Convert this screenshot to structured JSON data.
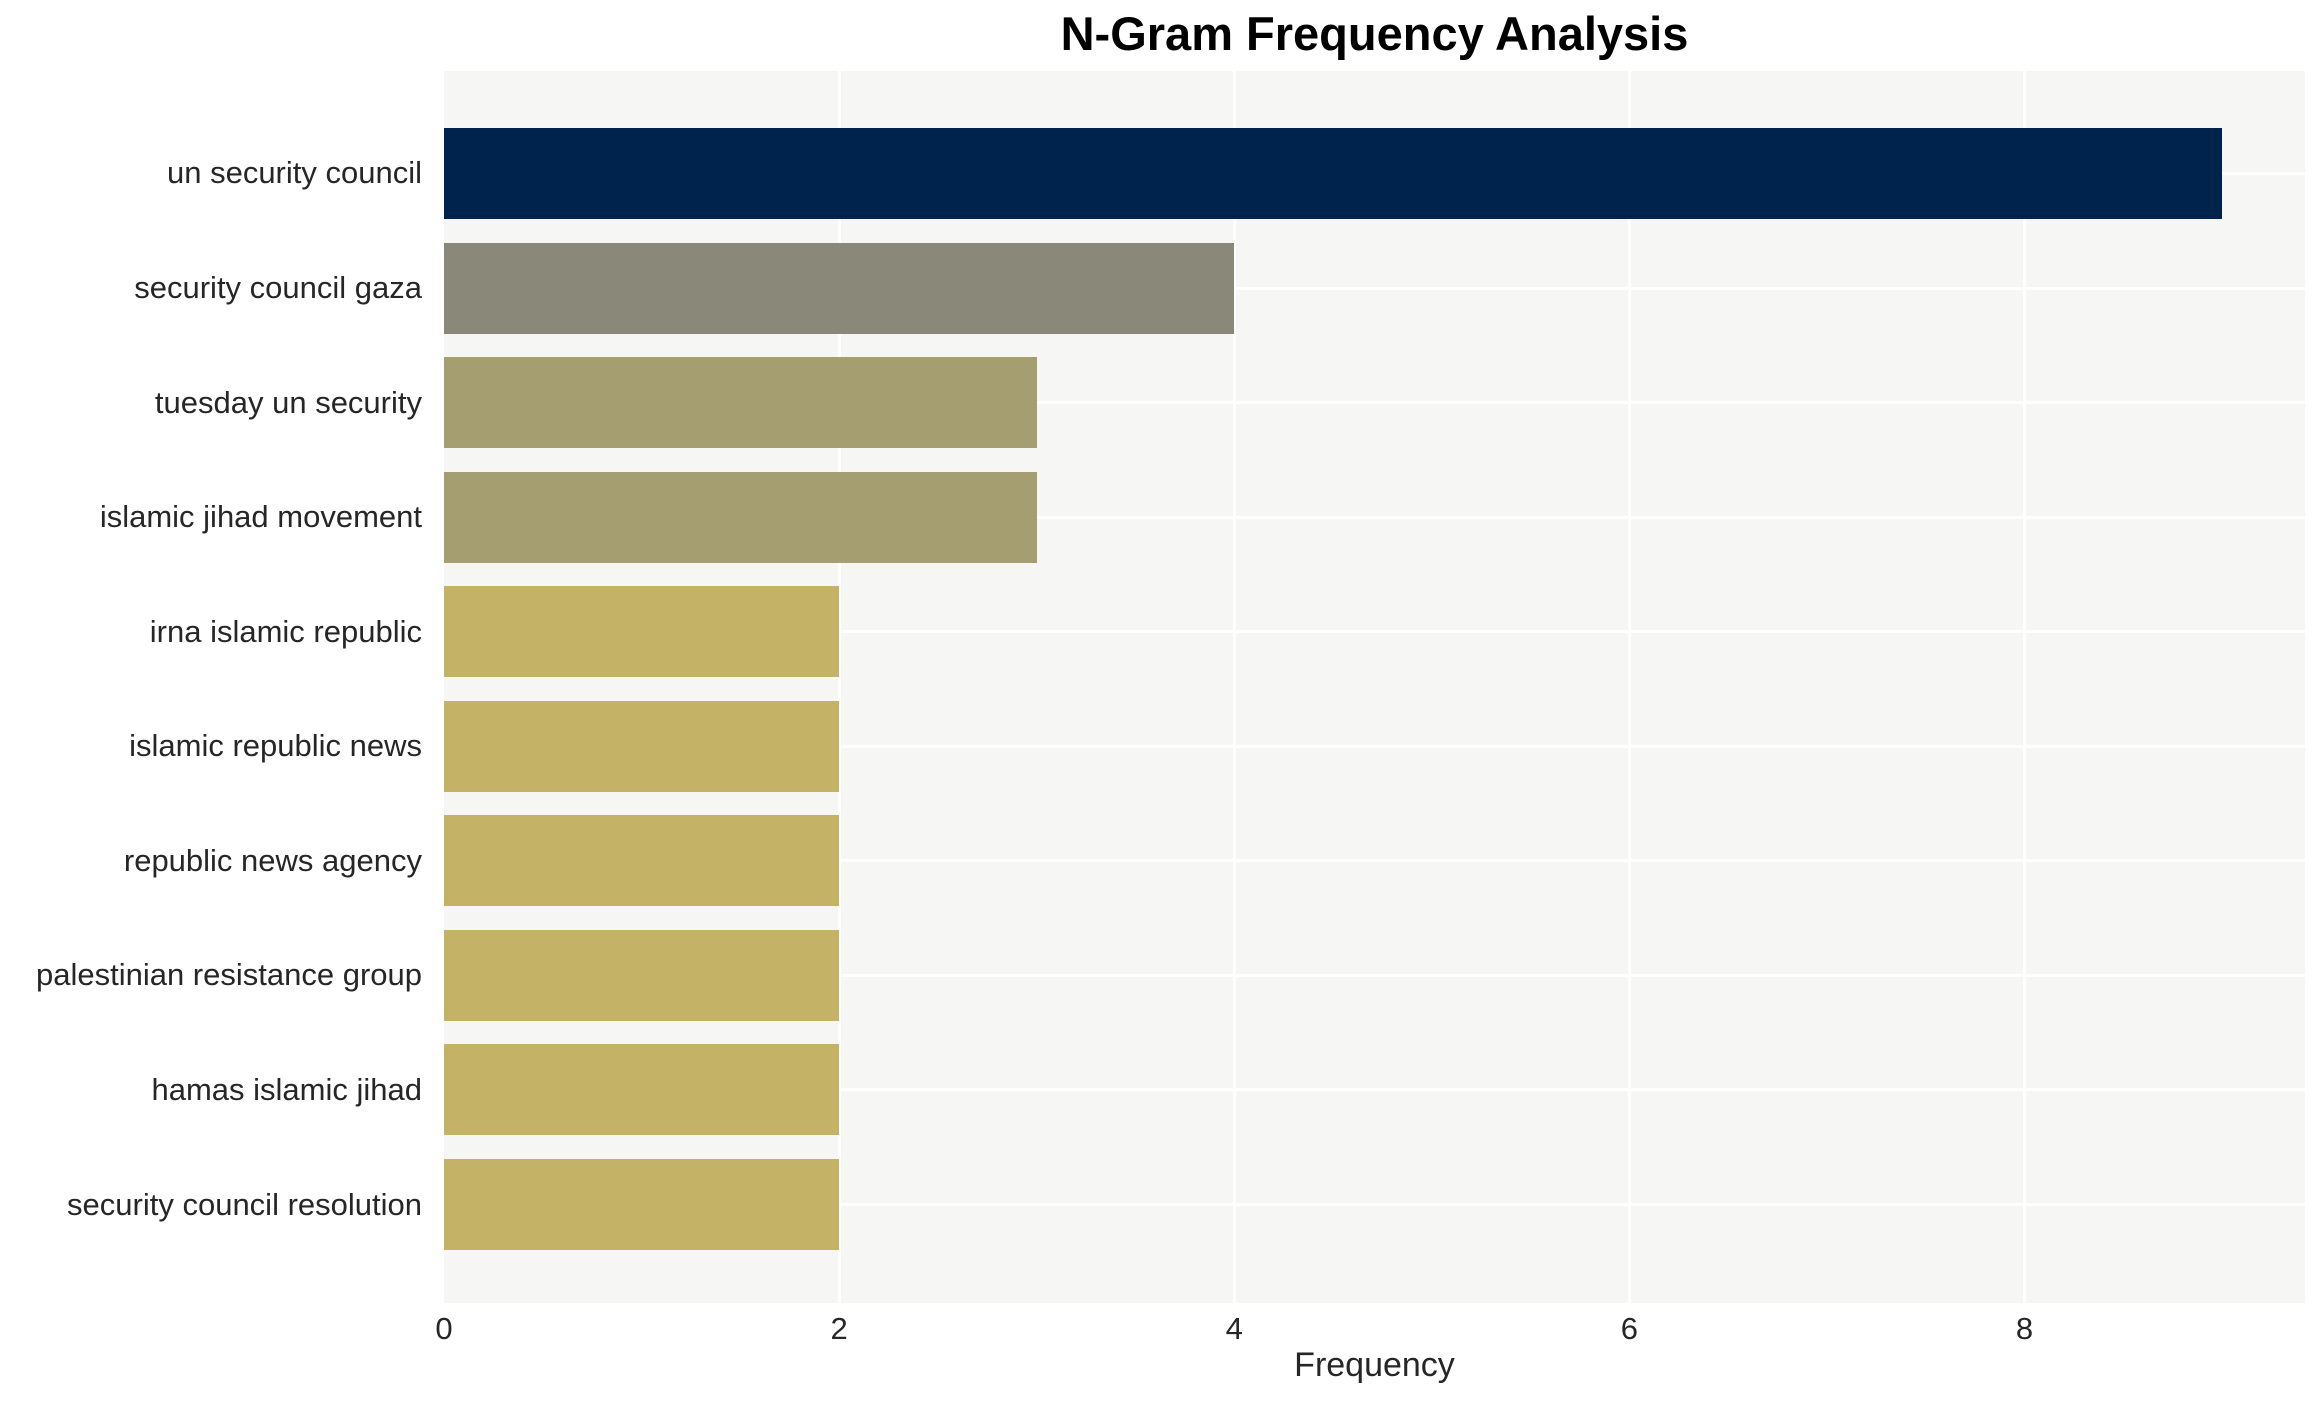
{
  "title": "N-Gram Frequency Analysis",
  "chart_data": {
    "type": "bar",
    "orientation": "horizontal",
    "title": "N-Gram Frequency Analysis",
    "xlabel": "Frequency",
    "ylabel": "",
    "categories": [
      "un security council",
      "security council gaza",
      "tuesday un security",
      "islamic jihad movement",
      "irna islamic republic",
      "islamic republic news",
      "republic news agency",
      "palestinian resistance group",
      "hamas islamic jihad",
      "security council resolution"
    ],
    "values": [
      9,
      4,
      3,
      3,
      2,
      2,
      2,
      2,
      2,
      2
    ],
    "bar_colors": [
      "#00234D",
      "#8A8879",
      "#A59E70",
      "#A59E70",
      "#C4B266",
      "#C4B266",
      "#C4B266",
      "#C4B266",
      "#C4B266",
      "#C4B266"
    ],
    "x_ticks": [
      0,
      2,
      4,
      6,
      8
    ],
    "xlim": [
      0,
      9.42
    ],
    "grid": "on",
    "grid_color": "#FFFFFF",
    "plot_background": "#F6F6F4",
    "figure_background": "#FFFFFF",
    "legend": "none"
  }
}
